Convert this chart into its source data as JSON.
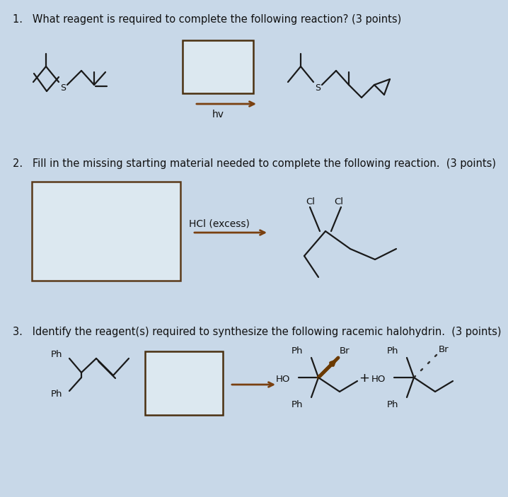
{
  "bg_color": "#c8d8e8",
  "q1": "1.   What reagent is required to complete the following reaction? (3 points)",
  "q2": "2.   Fill in the missing starting material needed to complete the following reaction.  (3 points)",
  "q3": "3.   Identify the reagent(s) required to synthesize the following racemic halohydrin.  (3 points)",
  "hv": "hv",
  "hcl": "HCl (excess)",
  "cl": "Cl",
  "br": "Br",
  "ho": "HO",
  "ph": "Ph",
  "plus": "+"
}
